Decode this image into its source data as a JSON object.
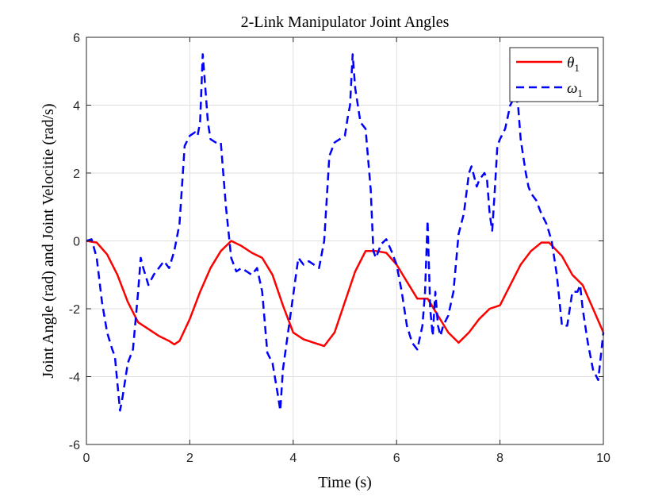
{
  "chart_data": {
    "type": "line",
    "title": "2-Link Manipulator Joint Angles",
    "xlabel": "Time (s)",
    "ylabel": "Joint Angle (rad) and Joint Velocitie (rad/s)",
    "xlim": [
      0,
      10
    ],
    "ylim": [
      -6,
      6
    ],
    "xticks": [
      0,
      2,
      4,
      6,
      8,
      10
    ],
    "xtick_labels": [
      "0",
      "2",
      "4",
      "6",
      "8",
      "10"
    ],
    "yticks": [
      -6,
      -4,
      -2,
      0,
      2,
      4,
      6
    ],
    "ytick_labels": [
      "-6",
      "-4",
      "-2",
      "0",
      "2",
      "4",
      "6"
    ],
    "grid": true,
    "legend_position": "top-right",
    "series": [
      {
        "name": "θ1",
        "legend_base": "θ",
        "legend_sub": "1",
        "color": "#ff0000",
        "style": "solid",
        "x": [
          0.0,
          0.2,
          0.4,
          0.6,
          0.8,
          1.0,
          1.2,
          1.4,
          1.6,
          1.7,
          1.8,
          2.0,
          2.2,
          2.4,
          2.6,
          2.8,
          3.0,
          3.2,
          3.4,
          3.6,
          3.8,
          4.0,
          4.2,
          4.4,
          4.6,
          4.8,
          5.0,
          5.2,
          5.4,
          5.6,
          5.8,
          6.0,
          6.2,
          6.4,
          6.6,
          6.8,
          7.0,
          7.2,
          7.4,
          7.6,
          7.8,
          8.0,
          8.2,
          8.4,
          8.6,
          8.8,
          8.95,
          9.2,
          9.4,
          9.6,
          9.8,
          10.0
        ],
        "y": [
          0.0,
          -0.05,
          -0.4,
          -1.0,
          -1.8,
          -2.4,
          -2.6,
          -2.8,
          -2.95,
          -3.05,
          -2.95,
          -2.3,
          -1.5,
          -0.8,
          -0.3,
          0.0,
          -0.15,
          -0.35,
          -0.5,
          -1.0,
          -1.9,
          -2.7,
          -2.9,
          -3.0,
          -3.1,
          -2.7,
          -1.8,
          -0.9,
          -0.3,
          -0.3,
          -0.35,
          -0.7,
          -1.2,
          -1.7,
          -1.7,
          -2.2,
          -2.7,
          -3.0,
          -2.7,
          -2.3,
          -2.0,
          -1.9,
          -1.3,
          -0.7,
          -0.3,
          -0.05,
          -0.05,
          -0.45,
          -1.0,
          -1.3,
          -2.0,
          -2.7
        ]
      },
      {
        "name": "ω1",
        "legend_base": "ω",
        "legend_sub": "1",
        "color": "#0000ff",
        "style": "dashed",
        "x": [
          0.0,
          0.1,
          0.2,
          0.3,
          0.4,
          0.5,
          0.55,
          0.6,
          0.65,
          0.7,
          0.8,
          0.9,
          1.0,
          1.05,
          1.1,
          1.2,
          1.3,
          1.4,
          1.5,
          1.6,
          1.7,
          1.8,
          1.9,
          2.0,
          2.1,
          2.15,
          2.2,
          2.25,
          2.3,
          2.35,
          2.4,
          2.5,
          2.6,
          2.7,
          2.8,
          2.85,
          2.9,
          3.0,
          3.1,
          3.2,
          3.3,
          3.4,
          3.5,
          3.6,
          3.7,
          3.75,
          3.8,
          3.9,
          4.0,
          4.1,
          4.2,
          4.3,
          4.4,
          4.5,
          4.6,
          4.7,
          4.8,
          4.9,
          5.0,
          5.05,
          5.1,
          5.15,
          5.2,
          5.3,
          5.4,
          5.5,
          5.55,
          5.6,
          5.65,
          5.7,
          5.8,
          5.9,
          6.0,
          6.1,
          6.2,
          6.3,
          6.4,
          6.5,
          6.55,
          6.6,
          6.65,
          6.7,
          6.75,
          6.8,
          6.85,
          6.9,
          7.0,
          7.1,
          7.2,
          7.3,
          7.4,
          7.45,
          7.5,
          7.55,
          7.6,
          7.7,
          7.75,
          7.8,
          7.85,
          7.9,
          7.95,
          8.0,
          8.1,
          8.2,
          8.3,
          8.35,
          8.4,
          8.45,
          8.5,
          8.55,
          8.6,
          8.7,
          8.8,
          8.9,
          9.0,
          9.1,
          9.2,
          9.3,
          9.4,
          9.5,
          9.55,
          9.6,
          9.7,
          9.8,
          9.9,
          10.0
        ],
        "y": [
          0.0,
          0.05,
          -0.5,
          -1.8,
          -2.7,
          -3.2,
          -3.4,
          -4.2,
          -5.0,
          -4.6,
          -3.6,
          -3.2,
          -1.5,
          -0.5,
          -0.8,
          -1.3,
          -1.0,
          -0.8,
          -0.6,
          -0.8,
          -0.3,
          0.5,
          2.8,
          3.1,
          3.2,
          3.1,
          3.5,
          5.5,
          4.5,
          3.5,
          3.0,
          2.9,
          2.9,
          1.0,
          -0.5,
          -0.7,
          -0.9,
          -0.8,
          -0.9,
          -1.0,
          -0.8,
          -1.5,
          -3.3,
          -3.6,
          -4.5,
          -5.0,
          -3.8,
          -2.7,
          -1.6,
          -0.5,
          -0.7,
          -0.6,
          -0.7,
          -0.8,
          0.0,
          2.5,
          2.9,
          3.0,
          3.1,
          3.6,
          4.0,
          5.5,
          4.5,
          3.5,
          3.3,
          1.5,
          -0.3,
          -0.5,
          -0.3,
          -0.1,
          0.05,
          -0.3,
          -0.7,
          -1.5,
          -2.5,
          -3.0,
          -3.2,
          -2.5,
          -1.5,
          0.6,
          -2.0,
          -2.8,
          -1.5,
          -2.5,
          -2.8,
          -2.5,
          -2.2,
          -1.5,
          0.2,
          0.8,
          2.0,
          2.2,
          1.9,
          1.6,
          1.8,
          2.0,
          1.8,
          0.8,
          0.3,
          1.5,
          2.8,
          3.0,
          3.3,
          4.0,
          4.3,
          4.0,
          3.0,
          2.5,
          2.0,
          1.6,
          1.4,
          1.2,
          0.8,
          0.5,
          0.0,
          -1.0,
          -2.5,
          -2.5,
          -1.5,
          -1.5,
          -1.3,
          -2.0,
          -3.0,
          -3.8,
          -4.1,
          -2.7
        ]
      }
    ]
  }
}
